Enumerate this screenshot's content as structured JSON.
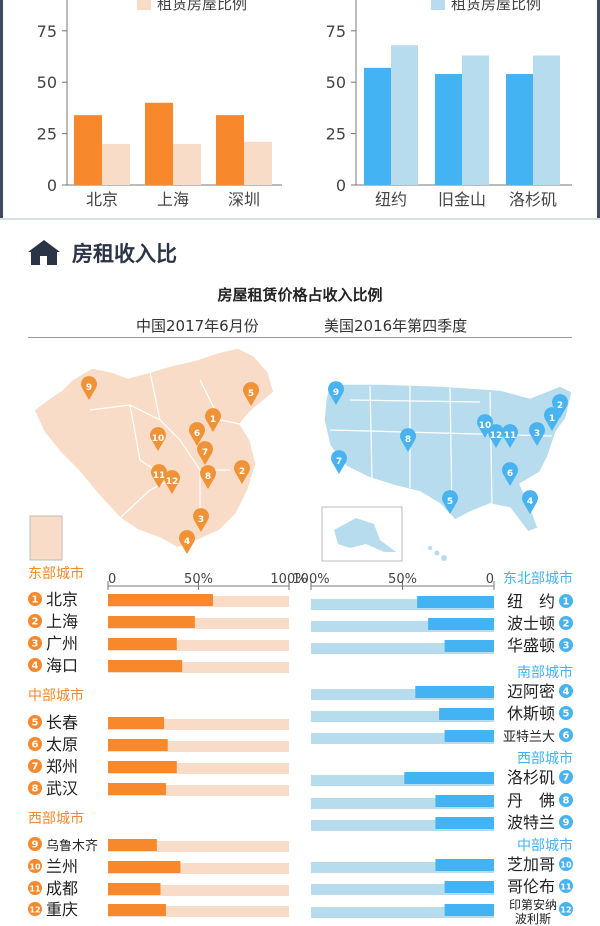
{
  "colors": {
    "orange": "#f7882b",
    "orange_light": "#f9dcc7",
    "blue": "#43b3f3",
    "blue_light": "#b6dcee",
    "china_map": "#f8dcc7",
    "us_map": "#b6dcee",
    "pin_orange": "#f09236",
    "pin_blue": "#49b3ef",
    "dark": "#2b3347"
  },
  "top_section": {
    "legend_left": "租赁房屋比例",
    "legend_right": "租赁房屋比例"
  },
  "section": {
    "title": "房租收入比",
    "icon": "house-icon"
  },
  "main": {
    "title": "房屋租赁价格占收入比例",
    "subtitle_cn": "中国2017年6月份",
    "subtitle_us": "美国2016年第四季度"
  },
  "ratio_axis": {
    "cn_ticks": [
      "0",
      "50%",
      "100%"
    ],
    "us_ticks": [
      "100%",
      "50%",
      "0"
    ]
  },
  "chart_data": [
    {
      "type": "bar",
      "title": "",
      "legend": [
        "租赁房屋比例"
      ],
      "categories": [
        "北京",
        "上海",
        "深圳"
      ],
      "yticks": [
        "0",
        "25",
        "50",
        "75"
      ],
      "ylim": [
        0,
        90
      ],
      "series": [
        {
          "name": "",
          "color": "#f7882b",
          "values": [
            34,
            40,
            34
          ]
        },
        {
          "name": "租赁房屋比例",
          "color": "#f9dcc7",
          "values": [
            20,
            20,
            21
          ]
        }
      ]
    },
    {
      "type": "bar",
      "title": "",
      "legend": [
        "租赁房屋比例"
      ],
      "categories": [
        "纽约",
        "旧金山",
        "洛杉矶"
      ],
      "yticks": [
        "0",
        "25",
        "50",
        "75"
      ],
      "ylim": [
        0,
        90
      ],
      "series": [
        {
          "name": "",
          "color": "#43b3f3",
          "values": [
            57,
            54,
            54
          ]
        },
        {
          "name": "租赁房屋比例",
          "color": "#b6dcee",
          "values": [
            68,
            63,
            63
          ]
        }
      ]
    },
    {
      "type": "bar",
      "orientation": "horizontal",
      "country": "中国",
      "xlim": [
        0,
        100
      ],
      "groups": [
        {
          "name": "东部城市",
          "cities": [
            {
              "num": "1",
              "name": "北京",
              "value": 58
            },
            {
              "num": "2",
              "name": "上海",
              "value": 48
            },
            {
              "num": "3",
              "name": "广州",
              "value": 38
            },
            {
              "num": "4",
              "name": "海口",
              "value": 41
            }
          ]
        },
        {
          "name": "中部城市",
          "cities": [
            {
              "num": "5",
              "name": "长春",
              "value": 31
            },
            {
              "num": "6",
              "name": "太原",
              "value": 33
            },
            {
              "num": "7",
              "name": "郑州",
              "value": 38
            },
            {
              "num": "8",
              "name": "武汉",
              "value": 32
            }
          ]
        },
        {
          "name": "西部城市",
          "cities": [
            {
              "num": "9",
              "name": "乌鲁木齐",
              "value": 27
            },
            {
              "num": "10",
              "name": "兰州",
              "value": 40
            },
            {
              "num": "11",
              "name": "成都",
              "value": 29
            },
            {
              "num": "12",
              "name": "重庆",
              "value": 32
            }
          ]
        }
      ]
    },
    {
      "type": "bar",
      "orientation": "horizontal",
      "country": "美国",
      "xlim": [
        0,
        100
      ],
      "groups": [
        {
          "name": "东北部城市",
          "cities": [
            {
              "num": "1",
              "name": "纽　约",
              "value": 42
            },
            {
              "num": "2",
              "name": "波士顿",
              "value": 36
            },
            {
              "num": "3",
              "name": "华盛顿",
              "value": 27
            }
          ]
        },
        {
          "name": "南部城市",
          "cities": [
            {
              "num": "4",
              "name": "迈阿密",
              "value": 43
            },
            {
              "num": "5",
              "name": "休斯顿",
              "value": 30
            },
            {
              "num": "6",
              "name": "亚特兰大",
              "value": 27
            }
          ]
        },
        {
          "name": "西部城市",
          "cities": [
            {
              "num": "7",
              "name": "洛杉矶",
              "value": 49
            },
            {
              "num": "8",
              "name": "丹　佛",
              "value": 32
            },
            {
              "num": "9",
              "name": "波特兰",
              "value": 32
            }
          ]
        },
        {
          "name": "中部城市",
          "cities": [
            {
              "num": "10",
              "name": "芝加哥",
              "value": 32
            },
            {
              "num": "11",
              "name": "哥伦布",
              "value": 27
            },
            {
              "num": "12",
              "name": "印第安纳波利斯",
              "value": 27
            }
          ]
        }
      ]
    }
  ]
}
